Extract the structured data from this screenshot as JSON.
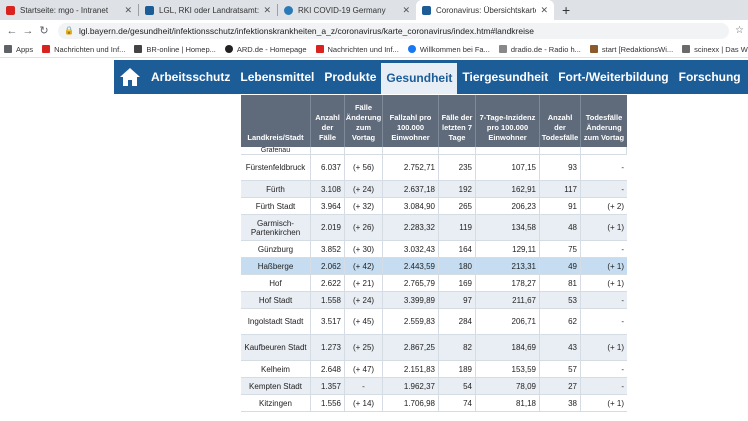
{
  "browser": {
    "tabs": [
      {
        "label": "Startseite: mgo - Intranet",
        "favicon_color": "#d9231e",
        "active": false
      },
      {
        "label": "LGL, RKI oder Landratsamt: Welch",
        "favicon_color": "#1c5d98",
        "active": false
      },
      {
        "label": "RKI COVID-19 Germany",
        "favicon_color": "#2b7ab8",
        "active": false
      },
      {
        "label": "Coronavirus: Übersichtskarte der",
        "favicon_color": "#1c5d98",
        "active": true
      }
    ],
    "url": "lgl.bayern.de/gesundheit/infektionsschutz/infektionskrankheiten_a_z/coronavirus/karte_coronavirus/index.htm#landkreise",
    "bookmarks": [
      {
        "label": "Apps",
        "color": "#5f6368"
      },
      {
        "label": "Nachrichten und Inf...",
        "color": "#d9231e"
      },
      {
        "label": "BR-online | Homep...",
        "color": "#444444"
      },
      {
        "label": "ARD.de - Homepage",
        "color": "#222222"
      },
      {
        "label": "Nachrichten und Inf...",
        "color": "#d9231e"
      },
      {
        "label": "Willkommen bei Fa...",
        "color": "#1877f2"
      },
      {
        "label": "dradio.de - Radio h...",
        "color": "#888888"
      },
      {
        "label": "start [RedaktionsWi...",
        "color": "#8b5a2b"
      },
      {
        "label": "scinexx | Das Wisse...",
        "color": "#6a6a6a"
      }
    ]
  },
  "site": {
    "nav": [
      "Arbeitsschutz",
      "Lebensmittel",
      "Produkte",
      "Gesundheit",
      "Tiergesundheit",
      "Fort-/Weiterbildung",
      "Forschung"
    ],
    "active_nav": "Gesundheit",
    "brand_color": "#1c5d98"
  },
  "table": {
    "headers": [
      "Landkreis/Stadt",
      "Anzahl der Fälle",
      "Fälle Änderung zum Vortag",
      "Fallzahl pro 100.000 Einwohner",
      "Fälle der letzten 7 Tage",
      "7-Tage-Inzidenz pro 100.000 Einwohner",
      "Anzahl der Todesfälle",
      "Todesfälle Änderung zum Vortag"
    ],
    "partial_top": "Grafenau",
    "rows": [
      [
        "Fürstenfeldbruck",
        "6.037",
        "(+ 56)",
        "2.752,71",
        "235",
        "107,15",
        "93",
        "-"
      ],
      [
        "Fürth",
        "3.108",
        "(+ 24)",
        "2.637,18",
        "192",
        "162,91",
        "117",
        "-"
      ],
      [
        "Fürth Stadt",
        "3.964",
        "(+ 32)",
        "3.084,90",
        "265",
        "206,23",
        "91",
        "(+ 2)"
      ],
      [
        "Garmisch-Partenkirchen",
        "2.019",
        "(+ 26)",
        "2.283,32",
        "119",
        "134,58",
        "48",
        "(+ 1)"
      ],
      [
        "Günzburg",
        "3.852",
        "(+ 30)",
        "3.032,43",
        "164",
        "129,11",
        "75",
        "-"
      ],
      [
        "Haßberge",
        "2.062",
        "(+ 42)",
        "2.443,59",
        "180",
        "213,31",
        "49",
        "(+ 1)"
      ],
      [
        "Hof",
        "2.622",
        "(+ 21)",
        "2.765,79",
        "169",
        "178,27",
        "81",
        "(+ 1)"
      ],
      [
        "Hof Stadt",
        "1.558",
        "(+ 24)",
        "3.399,89",
        "97",
        "211,67",
        "53",
        "-"
      ],
      [
        "Ingolstadt Stadt",
        "3.517",
        "(+ 45)",
        "2.559,83",
        "284",
        "206,71",
        "62",
        "-"
      ],
      [
        "Kaufbeuren Stadt",
        "1.273",
        "(+ 25)",
        "2.867,25",
        "82",
        "184,69",
        "43",
        "(+ 1)"
      ],
      [
        "Kelheim",
        "2.648",
        "(+ 47)",
        "2.151,83",
        "189",
        "153,59",
        "57",
        "-"
      ],
      [
        "Kempten Stadt",
        "1.357",
        "-",
        "1.962,37",
        "54",
        "78,09",
        "27",
        "-"
      ],
      [
        "Kitzingen",
        "1.556",
        "(+ 14)",
        "1.706,98",
        "74",
        "81,18",
        "38",
        "(+ 1)"
      ]
    ],
    "highlighted_row": "Haßberge"
  }
}
